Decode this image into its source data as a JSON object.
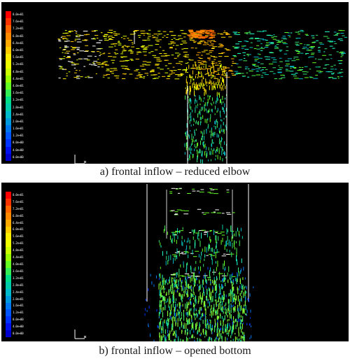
{
  "panels": [
    {
      "id": "a",
      "caption": "a)    frontal inflow – reduced elbow",
      "colorbar_labels": [
        "8.0e+01",
        "7.6e+01",
        "7.2e+01",
        "6.8e+01",
        "6.4e+01",
        "6.0e+01",
        "5.6e+01",
        "5.2e+01",
        "4.8e+01",
        "4.4e+01",
        "4.0e+01",
        "3.6e+01",
        "3.2e+01",
        "2.8e+01",
        "2.4e+01",
        "2.0e+01",
        "1.6e+01",
        "1.2e+01",
        "8.0e+00",
        "4.0e+00",
        "0.0e+00"
      ]
    },
    {
      "id": "b",
      "caption": "b) frontal inflow – opened bottom",
      "colorbar_labels": [
        "8.0e+01",
        "7.6e+01",
        "7.2e+01",
        "6.8e+01",
        "6.4e+01",
        "6.0e+01",
        "5.6e+01",
        "5.2e+01",
        "4.8e+01",
        "4.4e+01",
        "4.0e+01",
        "3.6e+01",
        "3.2e+01",
        "2.8e+01",
        "2.4e+01",
        "2.0e+01",
        "1.6e+01",
        "1.2e+01",
        "8.0e+00",
        "4.0e+00",
        "0.0e+00"
      ]
    }
  ],
  "colormap": [
    "#ff0000",
    "#ff3300",
    "#ff6600",
    "#ff8800",
    "#ffaa00",
    "#ffcc00",
    "#ffee00",
    "#eeff00",
    "#ccff00",
    "#99ff00",
    "#66ff22",
    "#33ee55",
    "#00dd88",
    "#00ccaa",
    "#00bbcc",
    "#0099dd",
    "#0077ee",
    "#0055ff",
    "#0033ff",
    "#0011ee",
    "#0000cc"
  ]
}
